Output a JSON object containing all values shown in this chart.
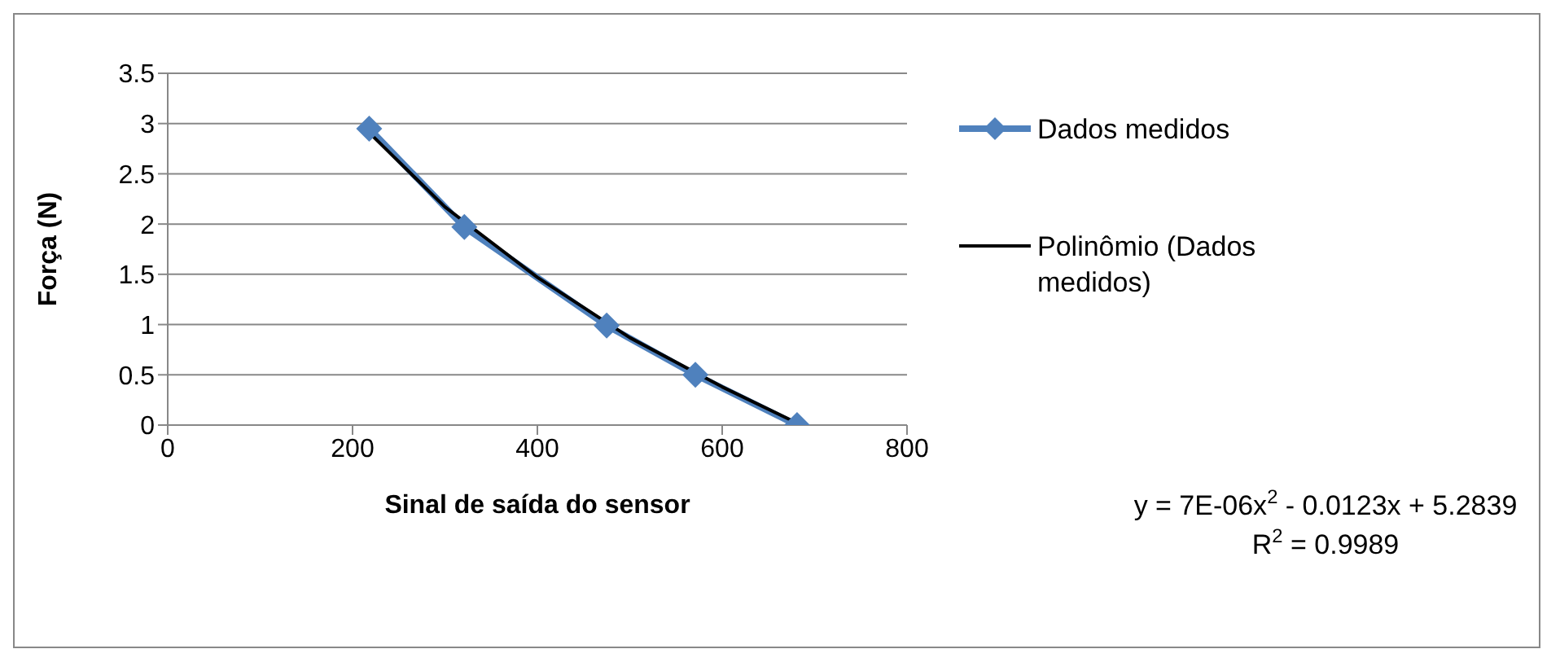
{
  "chart_data": {
    "type": "line",
    "xlabel": "Sinal de saída do sensor",
    "ylabel": "Força (N)",
    "xlim": [
      0,
      800
    ],
    "xticks": [
      0,
      200,
      400,
      600,
      800
    ],
    "ylim": [
      0,
      3.5
    ],
    "yticks": [
      0,
      0.5,
      1,
      1.5,
      2,
      2.5,
      3,
      3.5
    ],
    "grid": "y",
    "legend": "right",
    "series": [
      {
        "name": "Dados medidos",
        "color": "#4f81bd",
        "marker": "diamond",
        "x": [
          218,
          321,
          475,
          571,
          681
        ],
        "values": [
          2.95,
          1.97,
          0.99,
          0.5,
          0
        ]
      },
      {
        "name": "Polinômio (Dados medidos)",
        "color": "#000000",
        "marker": "none",
        "x": [
          218,
          300,
          400,
          500,
          600,
          681
        ],
        "values": [
          2.91,
          2.17,
          1.47,
          0.87,
          0.38,
          0.02
        ]
      }
    ],
    "annotations": [
      "y = 7E-06x$^{2}$ - 0.0123x + 5.2839",
      "R$^{2}$ = 0.9989"
    ]
  }
}
